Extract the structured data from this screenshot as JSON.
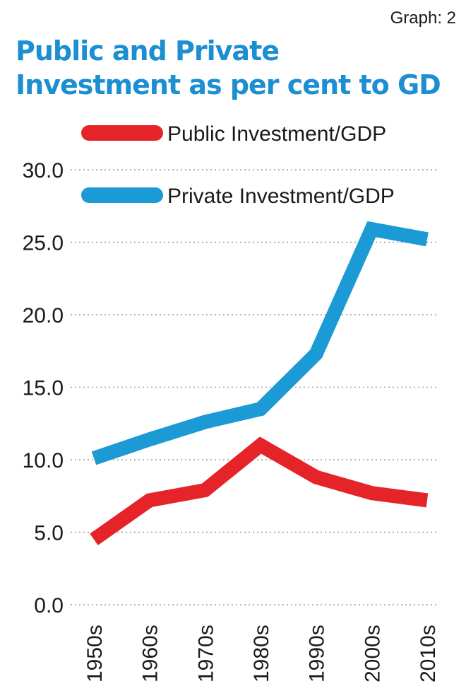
{
  "header": {
    "tag": "Graph: 2",
    "title_line1": "Public and Private",
    "title_line2": "Investment as per cent to GD"
  },
  "chart_data": {
    "type": "line",
    "title": "Public and Private Investment as per cent to GD",
    "categories": [
      "1950s",
      "1960s",
      "1970s",
      "1980s",
      "1990s",
      "2000s",
      "2010s"
    ],
    "ylim": [
      0,
      30
    ],
    "yticks": [
      "0.0",
      "5.0",
      "10.0",
      "15.0",
      "20.0",
      "25.0",
      "30.0"
    ],
    "grid": true,
    "legend_position": "top-left",
    "series": [
      {
        "name": "Public Investment/GDP",
        "color": "#e5242a",
        "values": [
          4.5,
          7.2,
          7.9,
          11.0,
          8.8,
          7.7,
          7.2
        ]
      },
      {
        "name": "Private Investment/GDP",
        "color": "#1c9ad6",
        "values": [
          10.1,
          11.4,
          12.6,
          13.5,
          17.3,
          25.9,
          25.2
        ]
      }
    ]
  }
}
